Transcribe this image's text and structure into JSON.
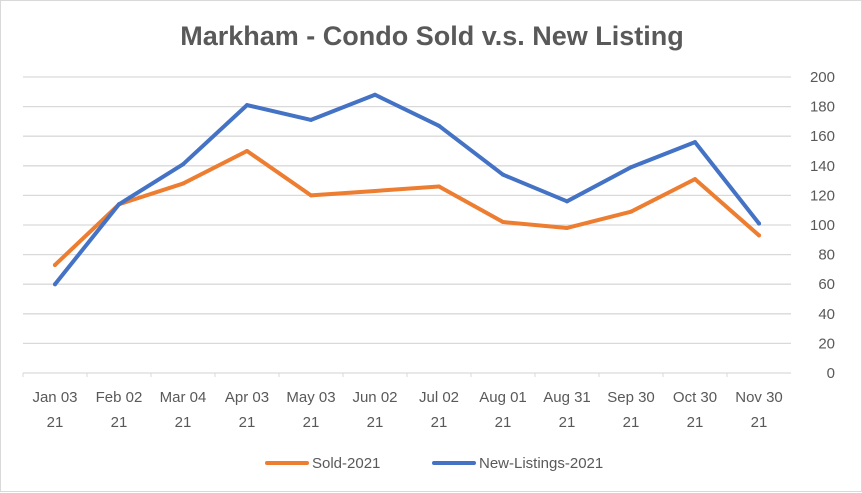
{
  "chart_data": {
    "type": "line",
    "title": "Markham - Condo Sold v.s. New Listing",
    "xlabel": "",
    "ylabel": "",
    "categories": [
      [
        "Jan 03",
        "21"
      ],
      [
        "Feb 02",
        "21"
      ],
      [
        "Mar 04",
        "21"
      ],
      [
        "Apr 03",
        "21"
      ],
      [
        "May 03",
        "21"
      ],
      [
        "Jun 02",
        "21"
      ],
      [
        "Jul 02",
        "21"
      ],
      [
        "Aug 01",
        "21"
      ],
      [
        "Aug 31",
        "21"
      ],
      [
        "Sep 30",
        "21"
      ],
      [
        "Oct 30",
        "21"
      ],
      [
        "Nov 30",
        "21"
      ]
    ],
    "ylim": [
      0,
      200
    ],
    "yticks": [
      0,
      20,
      40,
      60,
      80,
      100,
      120,
      140,
      160,
      180,
      200
    ],
    "y_axis_side": "right",
    "grid": true,
    "legend_position": "bottom",
    "series": [
      {
        "name": "Sold-2021",
        "color": "#ED7D31",
        "values": [
          73,
          114,
          128,
          150,
          120,
          123,
          126,
          102,
          98,
          109,
          131,
          93
        ]
      },
      {
        "name": "New-Listings-2021",
        "color": "#4472C4",
        "values": [
          60,
          114,
          141,
          181,
          171,
          188,
          167,
          134,
          116,
          139,
          156,
          101
        ]
      }
    ]
  }
}
